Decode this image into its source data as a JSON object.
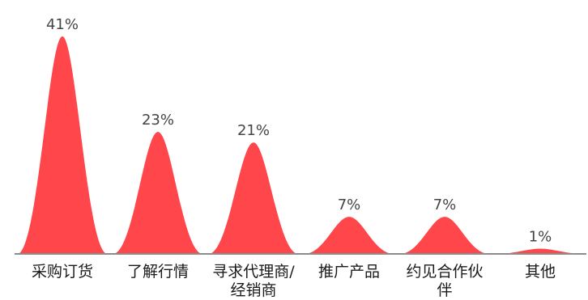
{
  "chart_data": {
    "type": "bar",
    "shape": "bell-peak",
    "categories": [
      [
        "采购订货"
      ],
      [
        "了解行情"
      ],
      [
        "寻求代理商/",
        "经销商"
      ],
      [
        "推广产品"
      ],
      [
        "约见合作伙",
        "伴"
      ],
      [
        "其他"
      ]
    ],
    "values": [
      41,
      23,
      21,
      7,
      7,
      1
    ],
    "value_labels": [
      "41%",
      "23%",
      "21%",
      "7%",
      "7%",
      "1%"
    ],
    "unit": "%",
    "ylim": [
      0,
      41
    ],
    "grid": false,
    "legend": "none",
    "colors": {
      "bar": "#ff464b",
      "axis": "#8c8c8c",
      "label": "#1a1a1a",
      "value_label": "#444444"
    }
  }
}
